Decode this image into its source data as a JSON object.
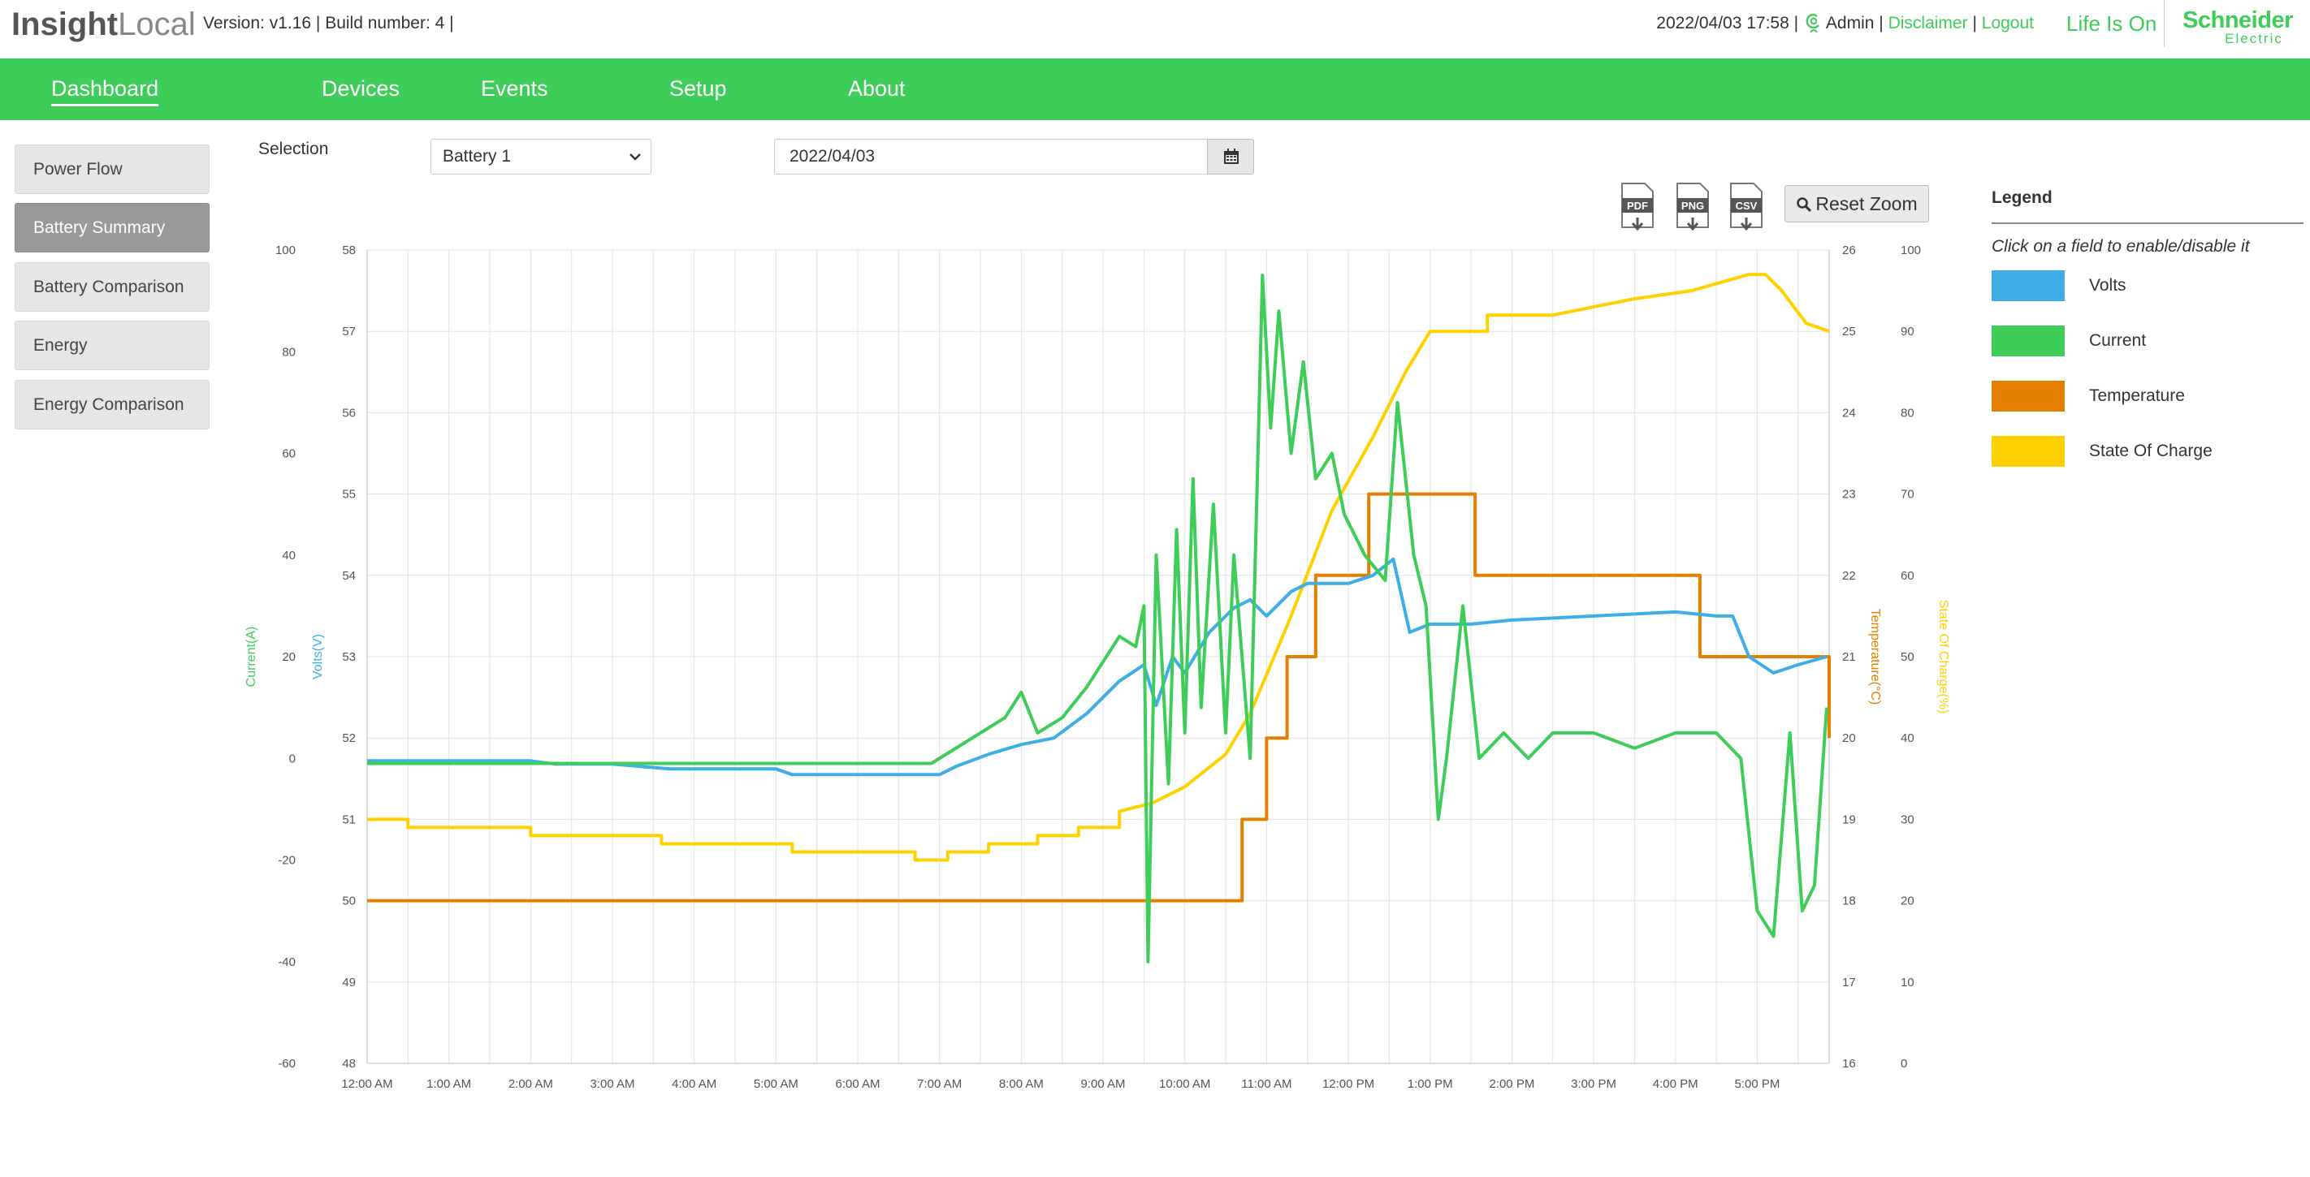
{
  "header": {
    "logo_bold": "Insight",
    "logo_light": "Local",
    "version_text": "Version: v1.16 | Build number: 4 |",
    "datetime": "2022/04/03 17:58 |",
    "user": "Admin",
    "sep1": "|",
    "disclaimer": "Disclaimer",
    "sep2": "|",
    "logout": "Logout",
    "tagline": "Life Is On",
    "brand_line1": "Schneider",
    "brand_line2": "Electric"
  },
  "nav": {
    "items": [
      {
        "label": "Dashboard"
      },
      {
        "label": "Devices"
      },
      {
        "label": "Events"
      },
      {
        "label": "Setup"
      },
      {
        "label": "About"
      }
    ]
  },
  "sidebar": {
    "items": [
      {
        "label": "Power Flow"
      },
      {
        "label": "Battery Summary"
      },
      {
        "label": "Battery Comparison"
      },
      {
        "label": "Energy"
      },
      {
        "label": "Energy Comparison"
      }
    ]
  },
  "selection": {
    "label": "Selection",
    "device": "Battery 1",
    "date": "2022/04/03"
  },
  "toolbar": {
    "pdf": "PDF",
    "png": "PNG",
    "csv": "CSV",
    "reset_zoom": "Reset Zoom"
  },
  "legend": {
    "title": "Legend",
    "hint": "Click on a field to enable/disable it",
    "items": [
      {
        "label": "Volts",
        "color": "#3eaee6"
      },
      {
        "label": "Current",
        "color": "#3dcd58"
      },
      {
        "label": "Temperature",
        "color": "#e47f00"
      },
      {
        "label": "State Of Charge",
        "color": "#ffd100"
      }
    ]
  },
  "chart_data": {
    "type": "line",
    "grid": true,
    "x_labels": [
      "12:00 AM",
      "1:00 AM",
      "2:00 AM",
      "3:00 AM",
      "4:00 AM",
      "5:00 AM",
      "6:00 AM",
      "7:00 AM",
      "8:00 AM",
      "9:00 AM",
      "10:00 AM",
      "11:00 AM",
      "12:00 PM",
      "1:00 PM",
      "2:00 PM",
      "3:00 PM",
      "4:00 PM",
      "5:00 PM"
    ],
    "x_range_hours": [
      0,
      17.88
    ],
    "axes": {
      "current": {
        "label": "Current(A)",
        "ticks": [
          "100",
          "80",
          "60",
          "40",
          "20",
          "0",
          "-20",
          "-40",
          "-60"
        ],
        "range": [
          -60,
          100
        ]
      },
      "volts": {
        "label": "Volts(V)",
        "ticks": [
          "58",
          "57",
          "56",
          "55",
          "54",
          "53",
          "52",
          "51",
          "50",
          "49",
          "48"
        ],
        "range": [
          48,
          58
        ]
      },
      "temperature": {
        "label": "Temperature(°C)",
        "ticks": [
          "26",
          "25",
          "24",
          "23",
          "22",
          "21",
          "20",
          "19",
          "18",
          "17",
          "16"
        ],
        "range": [
          16,
          26
        ]
      },
      "soc": {
        "label": "State Of Charge(%)",
        "ticks": [
          "100",
          "90",
          "80",
          "70",
          "60",
          "50",
          "40",
          "30",
          "20",
          "10",
          "0"
        ],
        "range": [
          0,
          100
        ]
      }
    },
    "series": [
      {
        "name": "Volts",
        "axis": "volts",
        "color": "#3eaee6",
        "points": [
          [
            0,
            51.72
          ],
          [
            1,
            51.72
          ],
          [
            2,
            51.72
          ],
          [
            2.3,
            51.68
          ],
          [
            3,
            51.68
          ],
          [
            3.7,
            51.62
          ],
          [
            4,
            51.62
          ],
          [
            5,
            51.62
          ],
          [
            5.2,
            51.55
          ],
          [
            6,
            51.55
          ],
          [
            7,
            51.55
          ],
          [
            7.2,
            51.65
          ],
          [
            7.6,
            51.8
          ],
          [
            8,
            51.92
          ],
          [
            8.4,
            52.0
          ],
          [
            8.8,
            52.3
          ],
          [
            9.2,
            52.7
          ],
          [
            9.5,
            52.9
          ],
          [
            9.65,
            52.4
          ],
          [
            9.85,
            53.0
          ],
          [
            10.0,
            52.8
          ],
          [
            10.3,
            53.3
          ],
          [
            10.6,
            53.6
          ],
          [
            10.8,
            53.7
          ],
          [
            11.0,
            53.5
          ],
          [
            11.3,
            53.8
          ],
          [
            11.5,
            53.9
          ],
          [
            12.0,
            53.9
          ],
          [
            12.3,
            54.0
          ],
          [
            12.55,
            54.2
          ],
          [
            12.75,
            53.3
          ],
          [
            13.0,
            53.4
          ],
          [
            13.5,
            53.4
          ],
          [
            14,
            53.45
          ],
          [
            15,
            53.5
          ],
          [
            16,
            53.55
          ],
          [
            16.5,
            53.5
          ],
          [
            16.7,
            53.5
          ],
          [
            16.9,
            53.0
          ],
          [
            17.2,
            52.8
          ],
          [
            17.5,
            52.9
          ],
          [
            17.85,
            53.0
          ]
        ]
      },
      {
        "name": "Current",
        "axis": "current",
        "color": "#3dcd58",
        "points": [
          [
            0,
            -1
          ],
          [
            1,
            -1
          ],
          [
            2,
            -1
          ],
          [
            3,
            -1
          ],
          [
            4,
            -1
          ],
          [
            5,
            -1
          ],
          [
            6,
            -1
          ],
          [
            6.9,
            -1
          ],
          [
            7.3,
            3
          ],
          [
            7.8,
            8
          ],
          [
            8.0,
            13
          ],
          [
            8.2,
            5
          ],
          [
            8.5,
            8
          ],
          [
            8.8,
            14
          ],
          [
            9.2,
            24
          ],
          [
            9.4,
            22
          ],
          [
            9.5,
            30
          ],
          [
            9.55,
            -40
          ],
          [
            9.65,
            40
          ],
          [
            9.8,
            -5
          ],
          [
            9.9,
            45
          ],
          [
            10.0,
            5
          ],
          [
            10.1,
            55
          ],
          [
            10.2,
            10
          ],
          [
            10.35,
            50
          ],
          [
            10.5,
            5
          ],
          [
            10.6,
            40
          ],
          [
            10.8,
            0
          ],
          [
            10.95,
            95
          ],
          [
            11.05,
            65
          ],
          [
            11.15,
            88
          ],
          [
            11.3,
            60
          ],
          [
            11.45,
            78
          ],
          [
            11.6,
            55
          ],
          [
            11.8,
            60
          ],
          [
            11.95,
            48
          ],
          [
            12.2,
            40
          ],
          [
            12.45,
            35
          ],
          [
            12.6,
            70
          ],
          [
            12.8,
            40
          ],
          [
            12.95,
            30
          ],
          [
            13.1,
            -12
          ],
          [
            13.2,
            0
          ],
          [
            13.4,
            30
          ],
          [
            13.6,
            0
          ],
          [
            13.9,
            5
          ],
          [
            14.2,
            0
          ],
          [
            14.5,
            5
          ],
          [
            15,
            5
          ],
          [
            15.5,
            2
          ],
          [
            16,
            5
          ],
          [
            16.5,
            5
          ],
          [
            16.8,
            0
          ],
          [
            17.0,
            -30
          ],
          [
            17.2,
            -35
          ],
          [
            17.4,
            5
          ],
          [
            17.55,
            -30
          ],
          [
            17.7,
            -25
          ],
          [
            17.85,
            10
          ]
        ]
      },
      {
        "name": "Temperature",
        "axis": "temperature",
        "color": "#e47f00",
        "points": [
          [
            0,
            18
          ],
          [
            10.7,
            18
          ],
          [
            10.7,
            19
          ],
          [
            11.0,
            19
          ],
          [
            11.0,
            20
          ],
          [
            11.25,
            20
          ],
          [
            11.25,
            21
          ],
          [
            11.6,
            21
          ],
          [
            11.6,
            22
          ],
          [
            12.25,
            22
          ],
          [
            12.25,
            23
          ],
          [
            13.55,
            23
          ],
          [
            13.55,
            22
          ],
          [
            16.3,
            22
          ],
          [
            16.3,
            21
          ],
          [
            17.88,
            21
          ],
          [
            17.88,
            20
          ]
        ]
      },
      {
        "name": "State Of Charge",
        "axis": "soc",
        "color": "#ffd100",
        "points": [
          [
            0,
            30
          ],
          [
            0.5,
            30
          ],
          [
            0.5,
            29
          ],
          [
            2,
            29
          ],
          [
            2,
            28
          ],
          [
            3.6,
            28
          ],
          [
            3.6,
            27
          ],
          [
            5.2,
            27
          ],
          [
            5.2,
            26
          ],
          [
            6.7,
            26
          ],
          [
            6.7,
            25
          ],
          [
            7.1,
            25
          ],
          [
            7.1,
            26
          ],
          [
            7.6,
            26
          ],
          [
            7.6,
            27
          ],
          [
            8.2,
            27
          ],
          [
            8.2,
            28
          ],
          [
            8.7,
            28
          ],
          [
            8.7,
            29
          ],
          [
            9.2,
            29
          ],
          [
            9.2,
            31
          ],
          [
            9.6,
            32
          ],
          [
            10.0,
            34
          ],
          [
            10.5,
            38
          ],
          [
            10.8,
            43
          ],
          [
            11.3,
            55
          ],
          [
            11.8,
            68
          ],
          [
            12.3,
            77
          ],
          [
            12.7,
            85
          ],
          [
            13.0,
            90
          ],
          [
            13.7,
            90
          ],
          [
            13.7,
            92
          ],
          [
            14.5,
            92
          ],
          [
            15.0,
            93
          ],
          [
            15.5,
            94
          ],
          [
            16.2,
            95
          ],
          [
            16.9,
            97
          ],
          [
            17.1,
            97
          ],
          [
            17.3,
            95
          ],
          [
            17.6,
            91
          ],
          [
            17.88,
            90
          ]
        ]
      }
    ]
  }
}
